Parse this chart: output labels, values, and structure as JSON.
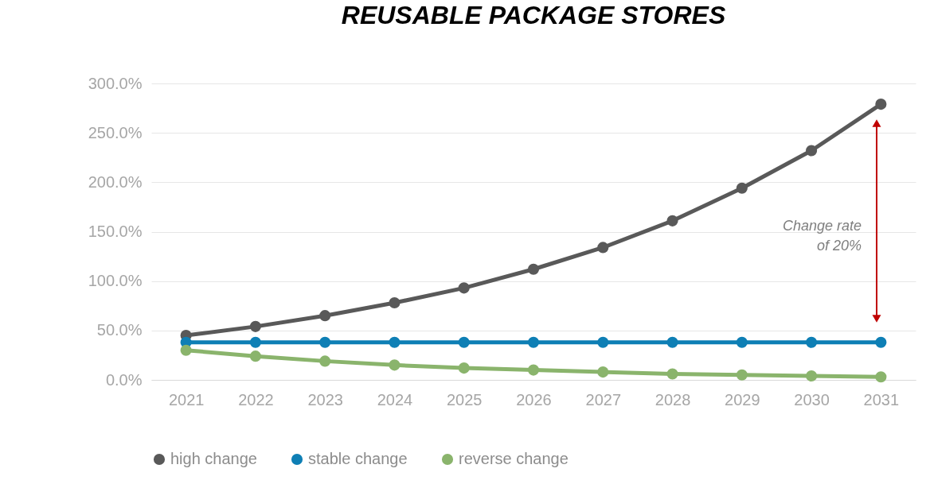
{
  "chart_data": {
    "type": "line",
    "title": "REUSABLE PACKAGE STORES",
    "categories": [
      "2021",
      "2022",
      "2023",
      "2024",
      "2025",
      "2026",
      "2027",
      "2028",
      "2029",
      "2030",
      "2031"
    ],
    "series": [
      {
        "name": "high change",
        "color": "#595959",
        "values": [
          45,
          54,
          65,
          78,
          93,
          112,
          134,
          161,
          194,
          232,
          279
        ]
      },
      {
        "name": "stable change",
        "color": "#0e7fb5",
        "values": [
          38,
          38,
          38,
          38,
          38,
          38,
          38,
          38,
          38,
          38,
          38
        ]
      },
      {
        "name": "reverse change",
        "color": "#8ab46c",
        "values": [
          30,
          24,
          19,
          15,
          12,
          10,
          8,
          6,
          5,
          4,
          3
        ]
      }
    ],
    "ylim": [
      0,
      300
    ],
    "yticks": [
      {
        "value": 0,
        "label": "0.0%"
      },
      {
        "value": 50,
        "label": "50.0%"
      },
      {
        "value": 100,
        "label": "100.0%"
      },
      {
        "value": 150,
        "label": "150.0%"
      },
      {
        "value": 200,
        "label": "200.0%"
      },
      {
        "value": 250,
        "label": "250.0%"
      },
      {
        "value": 300,
        "label": "300.0%"
      }
    ],
    "grid": "y",
    "legend": "bottom",
    "marker": "circle",
    "line_style": "solid",
    "annotations": [
      "Change rate\nof 20%"
    ]
  }
}
